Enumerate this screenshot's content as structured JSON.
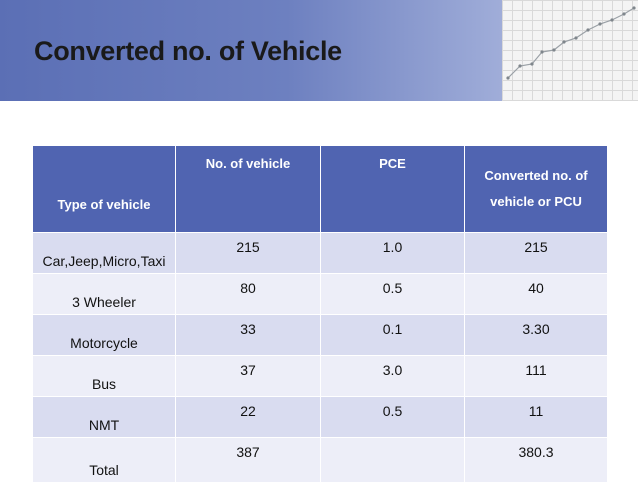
{
  "slide": {
    "title": "Converted no. of Vehicle"
  },
  "table": {
    "headers": {
      "type": "Type of vehicle",
      "count": "No. of vehicle",
      "pce": "PCE",
      "converted_line1": "Converted no. of",
      "converted_line2": "vehicle or PCU"
    },
    "rows": [
      {
        "type": "Car,Jeep,Micro,Taxi",
        "count": "215",
        "pce": "1.0",
        "converted": "215"
      },
      {
        "type": "3 Wheeler",
        "count": "80",
        "pce": "0.5",
        "converted": "40"
      },
      {
        "type": "Motorcycle",
        "count": "33",
        "pce": "0.1",
        "converted": "3.30"
      },
      {
        "type": "Bus",
        "count": "37",
        "pce": "3.0",
        "converted": "111"
      },
      {
        "type": "NMT",
        "count": "22",
        "pce": "0.5",
        "converted": "11"
      },
      {
        "type": "Total",
        "count": "387",
        "pce": "",
        "converted": "380.3"
      }
    ]
  },
  "colors": {
    "header_band": "#5b6fb5",
    "table_header": "#5064b1",
    "row_odd": "#d9dcf0",
    "row_even": "#edeef8"
  }
}
